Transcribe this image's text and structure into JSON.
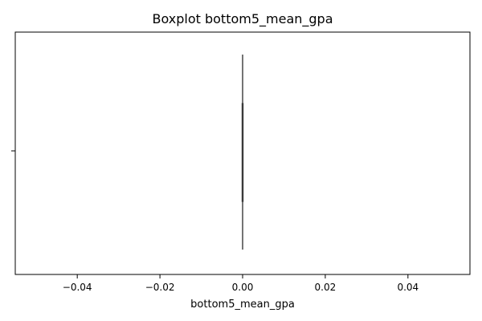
{
  "chart_data": {
    "type": "boxplot",
    "orientation": "horizontal",
    "title": "Boxplot bottom5_mean_gpa",
    "xlabel": "bottom5_mean_gpa",
    "ylabel": "",
    "xlim": [
      -0.055,
      0.055
    ],
    "x_ticks": [
      -0.04,
      -0.02,
      0.0,
      0.02,
      0.04
    ],
    "x_tick_labels": [
      "−0.04",
      "−0.02",
      "0.00",
      "0.02",
      "0.04"
    ],
    "grid": false,
    "legend": "none",
    "series": [
      {
        "min": 0.0,
        "q1": 0.0,
        "median": 0.0,
        "q3": 0.0,
        "max": 0.0,
        "color": "#3a3a3a"
      }
    ]
  }
}
